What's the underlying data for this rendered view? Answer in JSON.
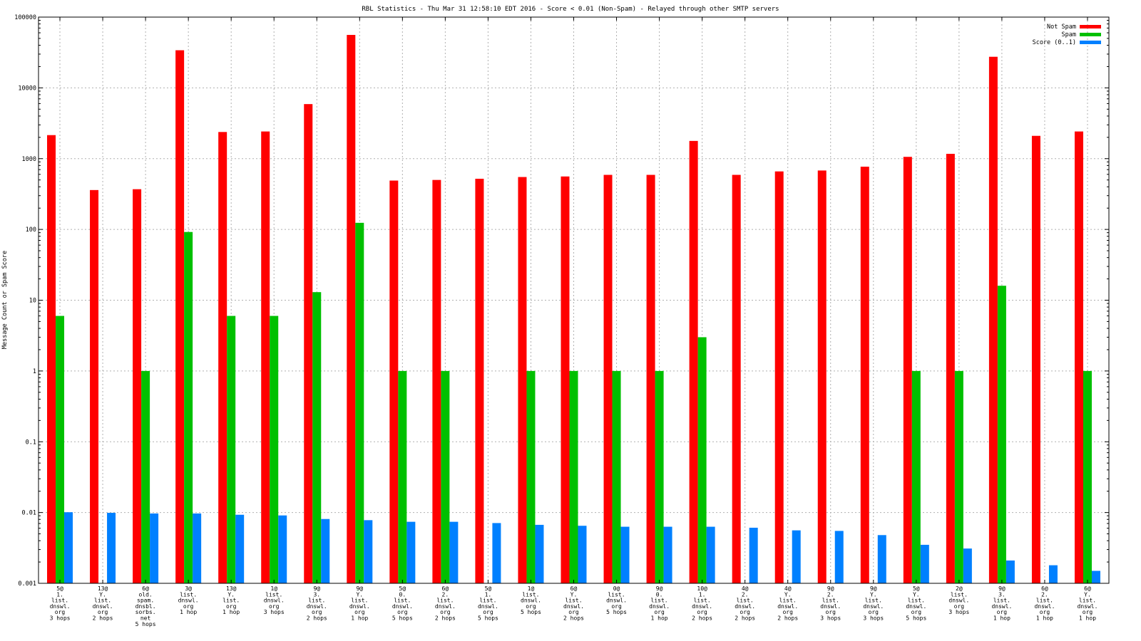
{
  "chart_data": {
    "type": "bar",
    "title": "RBL Statistics - Thu Mar 31 12:58:10 EDT 2016 - Score < 0.01 (Non-Spam) - Relayed through other SMTP servers",
    "xlabel": "",
    "ylabel": "Message Count or Spam Score",
    "yscale": "log",
    "ylim": [
      0.001,
      100000
    ],
    "yticks": [
      "0.001",
      "0.01",
      "0.1",
      "1",
      "10",
      "100",
      "1000",
      "10000",
      "100000"
    ],
    "grid": true,
    "legend_position": "top-right",
    "categories": [
      [
        "5@",
        "1.",
        "list.",
        "dnswl.",
        "org",
        "3 hops"
      ],
      [
        "13@",
        "Y.",
        "list.",
        "dnswl.",
        "org",
        "2 hops"
      ],
      [
        "6@",
        "old.",
        "spam.",
        "dnsbl.",
        "sorbs.",
        "net",
        "5 hops"
      ],
      [
        "3@",
        "list.",
        "dnswl.",
        "org",
        "1 hop"
      ],
      [
        "13@",
        "Y.",
        "list.",
        "org",
        "1 hop"
      ],
      [
        "1@",
        "list.",
        "dnswl.",
        "org",
        "3 hops"
      ],
      [
        "9@",
        "3.",
        "list.",
        "dnswl.",
        "org",
        "2 hops"
      ],
      [
        "9@",
        "Y.",
        "list.",
        "dnswl.",
        "org",
        "1 hop"
      ],
      [
        "5@",
        "0.",
        "list.",
        "dnswl.",
        "org",
        "5 hops"
      ],
      [
        "6@",
        "2.",
        "list.",
        "dnswl.",
        "org",
        "2 hops"
      ],
      [
        "5@",
        "1.",
        "list.",
        "dnswl.",
        "org",
        "5 hops"
      ],
      [
        "1@",
        "list.",
        "dnswl.",
        "org",
        "5 hops"
      ],
      [
        "6@",
        "Y.",
        "list.",
        "dnswl.",
        "org",
        "2 hops"
      ],
      [
        "0@",
        "list.",
        "dnswl.",
        "org",
        "5 hops"
      ],
      [
        "9@",
        "0.",
        "list.",
        "dnswl.",
        "org",
        "1 hop"
      ],
      [
        "10@",
        "1.",
        "list.",
        "dnswl.",
        "org",
        "2 hops"
      ],
      [
        "4@",
        "2.",
        "list.",
        "dnswl.",
        "org",
        "2 hops"
      ],
      [
        "4@",
        "Y.",
        "list.",
        "dnswl.",
        "org",
        "2 hops"
      ],
      [
        "9@",
        "2.",
        "list.",
        "dnswl.",
        "org",
        "3 hops"
      ],
      [
        "9@",
        "Y.",
        "list.",
        "dnswl.",
        "org",
        "3 hops"
      ],
      [
        "5@",
        "Y.",
        "list.",
        "dnswl.",
        "org",
        "5 hops"
      ],
      [
        "2@",
        "list.",
        "dnswl.",
        "org",
        "3 hops"
      ],
      [
        "9@",
        "3.",
        "list.",
        "dnswl.",
        "org",
        "1 hop"
      ],
      [
        "6@",
        "2.",
        "list.",
        "dnswl.",
        "org",
        "1 hop"
      ],
      [
        "6@",
        "Y.",
        "list.",
        "dnswl.",
        "org",
        "1 hop"
      ]
    ],
    "series": [
      {
        "name": "Not Spam",
        "color": "#ff0000",
        "values": [
          2150,
          360,
          370,
          34000,
          2380,
          2420,
          5900,
          56000,
          490,
          500,
          520,
          550,
          560,
          590,
          590,
          1780,
          590,
          660,
          680,
          770,
          1060,
          1170,
          27500,
          2100,
          2420
        ]
      },
      {
        "name": "Spam",
        "color": "#00c000",
        "values": [
          6,
          null,
          1,
          92,
          6,
          6,
          13,
          124,
          1,
          1,
          null,
          1,
          1,
          1,
          1,
          3,
          null,
          null,
          null,
          null,
          1,
          1,
          16,
          null,
          1
        ]
      },
      {
        "name": "Score (0..1)",
        "color": "#0080ff",
        "values": [
          0.0101,
          0.0099,
          0.0097,
          0.0097,
          0.0093,
          0.0091,
          0.0081,
          0.0078,
          0.0074,
          0.0074,
          0.0071,
          0.0067,
          0.0065,
          0.0063,
          0.0063,
          0.0063,
          0.0061,
          0.0056,
          0.0055,
          0.0048,
          0.0035,
          0.0031,
          0.0021,
          0.0018,
          0.0015
        ]
      }
    ]
  }
}
